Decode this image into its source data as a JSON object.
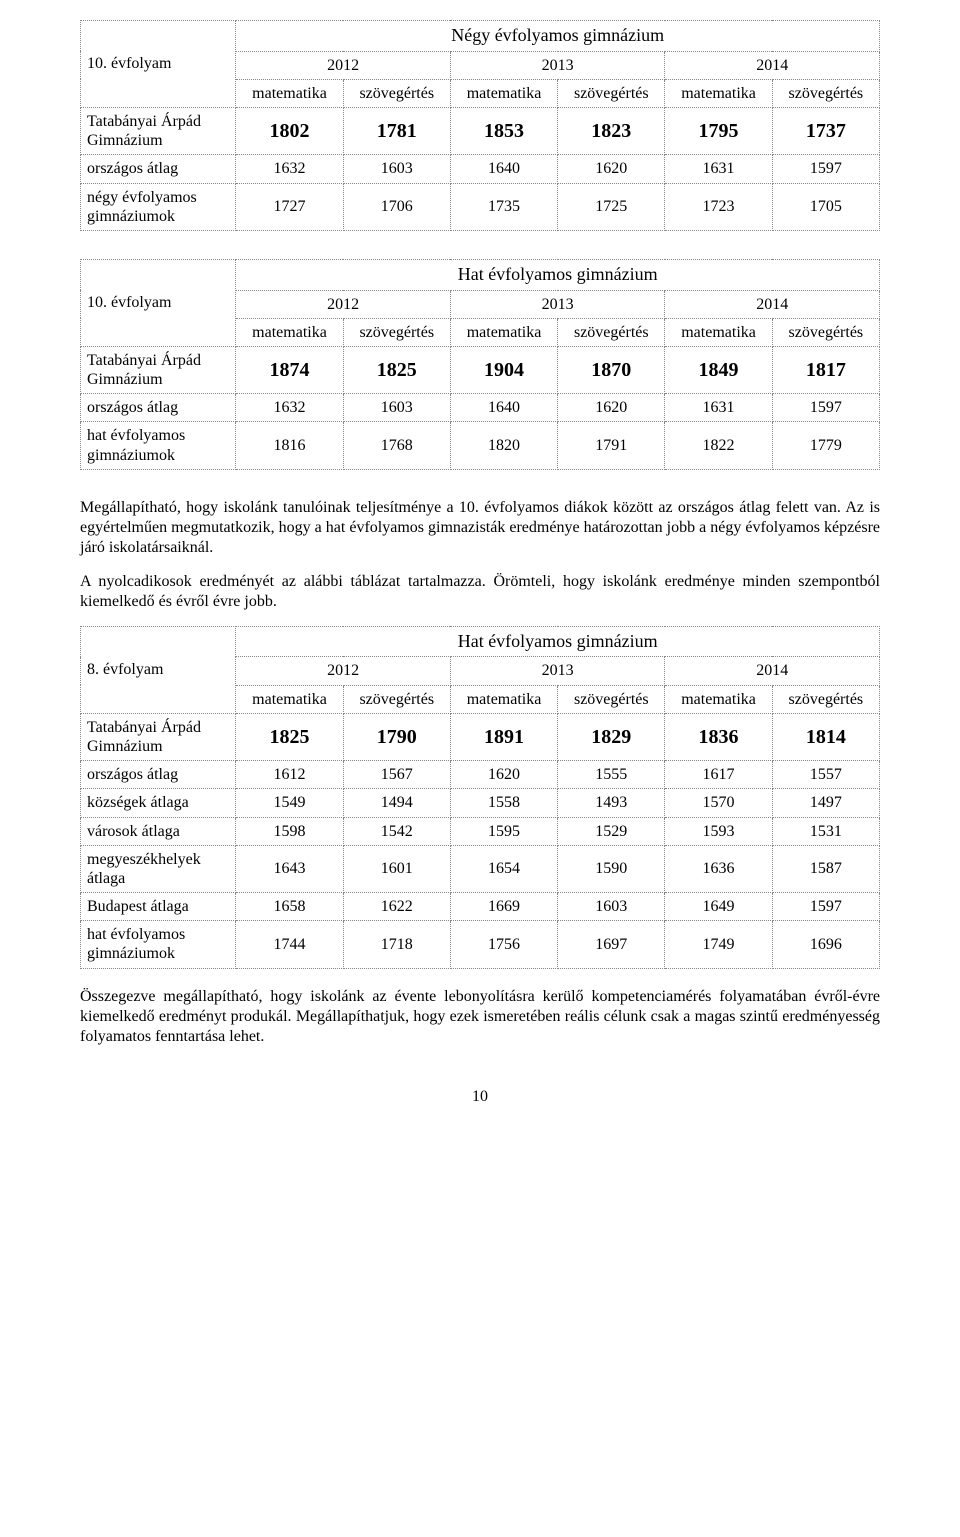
{
  "table1": {
    "title": "Négy évfolyamos gimnázium",
    "rowHeader": "10. évfolyam",
    "years": [
      "2012",
      "2013",
      "2014"
    ],
    "subHeaders": [
      "matematika",
      "szövegértés",
      "matematika",
      "szövegértés",
      "matematika",
      "szövegértés"
    ],
    "rows": [
      {
        "label": "Tatabányai Árpád\nGimnázium",
        "big": true,
        "values": [
          "1802",
          "1781",
          "1853",
          "1823",
          "1795",
          "1737"
        ]
      },
      {
        "label": "országos átlag",
        "big": false,
        "values": [
          "1632",
          "1603",
          "1640",
          "1620",
          "1631",
          "1597"
        ]
      },
      {
        "label": "négy évfolyamos\ngimnáziumok",
        "big": false,
        "values": [
          "1727",
          "1706",
          "1735",
          "1725",
          "1723",
          "1705"
        ]
      }
    ]
  },
  "table2": {
    "title": "Hat évfolyamos gimnázium",
    "rowHeader": "10. évfolyam",
    "years": [
      "2012",
      "2013",
      "2014"
    ],
    "subHeaders": [
      "matematika",
      "szövegértés",
      "matematika",
      "szövegértés",
      "matematika",
      "szövegértés"
    ],
    "rows": [
      {
        "label": "Tatabányai Árpád\nGimnázium",
        "big": true,
        "values": [
          "1874",
          "1825",
          "1904",
          "1870",
          "1849",
          "1817"
        ]
      },
      {
        "label": "országos átlag",
        "big": false,
        "values": [
          "1632",
          "1603",
          "1640",
          "1620",
          "1631",
          "1597"
        ]
      },
      {
        "label": "hat évfolyamos\ngimnáziumok",
        "big": false,
        "values": [
          "1816",
          "1768",
          "1820",
          "1791",
          "1822",
          "1779"
        ]
      }
    ]
  },
  "para1": "Megállapítható, hogy iskolánk tanulóinak teljesítménye a 10. évfolyamos diákok között az országos átlag felett van. Az is egyértelműen megmutatkozik, hogy a hat évfolyamos gimnazisták eredménye határozottan jobb a négy évfolyamos képzésre járó iskolatársaiknál.",
  "para2": "A nyolcadikosok eredményét az alábbi táblázat tartalmazza. Örömteli, hogy iskolánk eredménye minden szempontból kiemelkedő és évről évre jobb.",
  "table3": {
    "title": "Hat évfolyamos gimnázium",
    "rowHeader": "8. évfolyam",
    "years": [
      "2012",
      "2013",
      "2014"
    ],
    "subHeaders": [
      "matematika",
      "szövegértés",
      "matematika",
      "szövegértés",
      "matematika",
      "szövegértés"
    ],
    "rows": [
      {
        "label": "Tatabányai Árpád\nGimnázium",
        "big": true,
        "values": [
          "1825",
          "1790",
          "1891",
          "1829",
          "1836",
          "1814"
        ]
      },
      {
        "label": "országos átlag",
        "big": false,
        "values": [
          "1612",
          "1567",
          "1620",
          "1555",
          "1617",
          "1557"
        ]
      },
      {
        "label": "községek átlaga",
        "big": false,
        "values": [
          "1549",
          "1494",
          "1558",
          "1493",
          "1570",
          "1497"
        ]
      },
      {
        "label": "városok átlaga",
        "big": false,
        "values": [
          "1598",
          "1542",
          "1595",
          "1529",
          "1593",
          "1531"
        ]
      },
      {
        "label": "megyeszékhelyek\nátlaga",
        "big": false,
        "values": [
          "1643",
          "1601",
          "1654",
          "1590",
          "1636",
          "1587"
        ]
      },
      {
        "label": "Budapest átlaga",
        "big": false,
        "values": [
          "1658",
          "1622",
          "1669",
          "1603",
          "1649",
          "1597"
        ]
      },
      {
        "label": "hat évfolyamos\ngimnáziumok",
        "big": false,
        "values": [
          "1744",
          "1718",
          "1756",
          "1697",
          "1749",
          "1696"
        ]
      }
    ]
  },
  "para3": "Összegezve megállapítható, hogy iskolánk az évente lebonyolításra kerülő kompetenciamérés folyamatában évről-évre kiemelkedő eredményt produkál. Megállapíthatjuk, hogy ezek ismeretében reális célunk csak a magas szintű eredményesség folyamatos fenntartása lehet.",
  "pageNumber": "10"
}
